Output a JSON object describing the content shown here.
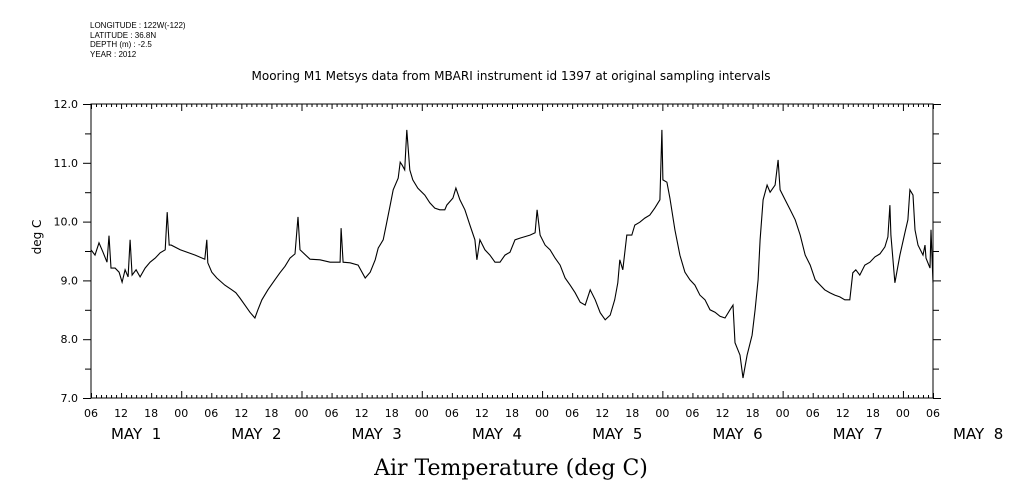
{
  "header": {
    "longitude": "LONGITUDE : 122W(-122)",
    "latitude": "LATITUDE : 36.8N",
    "depth": "DEPTH (m) : -2.5",
    "year": "YEAR : 2012"
  },
  "chart_data": {
    "type": "line",
    "title": "Mooring M1 Metsys data from MBARI instrument id 1397 at original sampling intervals",
    "xlabel": "Air Temperature (deg C)",
    "ylabel": "deg C",
    "ylim": [
      7.0,
      12.0
    ],
    "yticks": [
      "7.0",
      "8.0",
      "9.0",
      "10.0",
      "11.0",
      "12.0"
    ],
    "xlim": [
      0,
      168
    ],
    "xtick_labels": [
      "06",
      "12",
      "18",
      "00",
      "06",
      "12",
      "18",
      "00",
      "06",
      "12",
      "18",
      "00",
      "06",
      "12",
      "18",
      "00",
      "06",
      "12",
      "18",
      "00",
      "06",
      "12",
      "18",
      "00",
      "06",
      "12",
      "18",
      "00",
      "06"
    ],
    "day_labels": [
      "MAY  1",
      "MAY  2",
      "MAY  3",
      "MAY  4",
      "MAY  5",
      "MAY  6",
      "MAY  7",
      "MAY  8"
    ],
    "grid": false,
    "line_color": "#000000",
    "series": [
      {
        "name": "Air Temperature",
        "points": [
          [
            0,
            9.52
          ],
          [
            0.8,
            9.43
          ],
          [
            1.6,
            9.64
          ],
          [
            2.4,
            9.48
          ],
          [
            3.2,
            9.31
          ],
          [
            3.6,
            9.76
          ],
          [
            4.0,
            9.21
          ],
          [
            4.8,
            9.21
          ],
          [
            5.6,
            9.14
          ],
          [
            6.2,
            8.97
          ],
          [
            6.8,
            9.18
          ],
          [
            7.4,
            9.06
          ],
          [
            7.8,
            9.69
          ],
          [
            8.2,
            9.09
          ],
          [
            9.0,
            9.18
          ],
          [
            9.8,
            9.06
          ],
          [
            10.8,
            9.21
          ],
          [
            11.8,
            9.31
          ],
          [
            12.8,
            9.38
          ],
          [
            13.8,
            9.47
          ],
          [
            14.8,
            9.52
          ],
          [
            15.2,
            10.16
          ],
          [
            15.6,
            9.6
          ],
          [
            16.0,
            9.6
          ],
          [
            17.8,
            9.52
          ],
          [
            20.8,
            9.43
          ],
          [
            22.7,
            9.36
          ],
          [
            23.1,
            9.69
          ],
          [
            23.3,
            9.3
          ],
          [
            24.1,
            9.14
          ],
          [
            25.1,
            9.04
          ],
          [
            26.7,
            8.92
          ],
          [
            28.1,
            8.84
          ],
          [
            28.9,
            8.79
          ],
          [
            29.7,
            8.7
          ],
          [
            30.7,
            8.58
          ],
          [
            31.7,
            8.46
          ],
          [
            32.7,
            8.36
          ],
          [
            33.3,
            8.5
          ],
          [
            34.1,
            8.67
          ],
          [
            35.3,
            8.84
          ],
          [
            36.7,
            9.01
          ],
          [
            37.7,
            9.13
          ],
          [
            38.7,
            9.24
          ],
          [
            39.7,
            9.38
          ],
          [
            40.7,
            9.45
          ],
          [
            41.3,
            10.08
          ],
          [
            41.7,
            9.52
          ],
          [
            43.7,
            9.36
          ],
          [
            45.7,
            9.35
          ],
          [
            47.7,
            9.31
          ],
          [
            49.7,
            9.31
          ],
          [
            49.9,
            9.89
          ],
          [
            50.3,
            9.31
          ],
          [
            51.7,
            9.3
          ],
          [
            53.3,
            9.26
          ],
          [
            54.7,
            9.04
          ],
          [
            55.7,
            9.14
          ],
          [
            56.7,
            9.35
          ],
          [
            57.3,
            9.55
          ],
          [
            58.3,
            9.69
          ],
          [
            58.9,
            9.94
          ],
          [
            59.7,
            10.28
          ],
          [
            60.3,
            10.54
          ],
          [
            61.3,
            10.74
          ],
          [
            61.7,
            11.01
          ],
          [
            62.1,
            10.96
          ],
          [
            62.6,
            10.88
          ],
          [
            63.0,
            11.56
          ],
          [
            63.6,
            10.88
          ],
          [
            64.2,
            10.71
          ],
          [
            65.2,
            10.57
          ],
          [
            66.6,
            10.45
          ],
          [
            67.6,
            10.32
          ],
          [
            68.6,
            10.23
          ],
          [
            69.6,
            10.2
          ],
          [
            70.6,
            10.2
          ],
          [
            71.0,
            10.28
          ],
          [
            72.2,
            10.4
          ],
          [
            72.8,
            10.57
          ],
          [
            73.6,
            10.37
          ],
          [
            74.6,
            10.2
          ],
          [
            75.6,
            9.94
          ],
          [
            76.6,
            9.69
          ],
          [
            77.0,
            9.35
          ],
          [
            77.6,
            9.69
          ],
          [
            78.6,
            9.52
          ],
          [
            79.6,
            9.43
          ],
          [
            80.6,
            9.31
          ],
          [
            81.6,
            9.31
          ],
          [
            82.6,
            9.43
          ],
          [
            83.6,
            9.48
          ],
          [
            84.6,
            9.69
          ],
          [
            85.6,
            9.72
          ],
          [
            87.6,
            9.77
          ],
          [
            88.6,
            9.81
          ],
          [
            89.0,
            10.2
          ],
          [
            89.6,
            9.77
          ],
          [
            90.6,
            9.6
          ],
          [
            91.6,
            9.52
          ],
          [
            92.6,
            9.38
          ],
          [
            93.6,
            9.26
          ],
          [
            94.6,
            9.04
          ],
          [
            95.6,
            8.92
          ],
          [
            96.6,
            8.79
          ],
          [
            97.6,
            8.63
          ],
          [
            98.6,
            8.58
          ],
          [
            99.6,
            8.84
          ],
          [
            100.6,
            8.67
          ],
          [
            101.6,
            8.45
          ],
          [
            102.6,
            8.33
          ],
          [
            103.6,
            8.41
          ],
          [
            104.5,
            8.67
          ],
          [
            105.1,
            8.96
          ],
          [
            105.5,
            9.35
          ],
          [
            106.1,
            9.18
          ],
          [
            106.9,
            9.77
          ],
          [
            107.9,
            9.77
          ],
          [
            108.5,
            9.94
          ],
          [
            109.5,
            9.99
          ],
          [
            110.5,
            10.06
          ],
          [
            111.5,
            10.11
          ],
          [
            112.5,
            10.23
          ],
          [
            113.5,
            10.37
          ],
          [
            113.9,
            11.56
          ],
          [
            114.1,
            10.71
          ],
          [
            114.9,
            10.67
          ],
          [
            115.5,
            10.4
          ],
          [
            116.5,
            9.86
          ],
          [
            117.5,
            9.43
          ],
          [
            118.5,
            9.14
          ],
          [
            119.5,
            9.01
          ],
          [
            120.5,
            8.92
          ],
          [
            121.5,
            8.75
          ],
          [
            122.5,
            8.67
          ],
          [
            123.5,
            8.5
          ],
          [
            124.5,
            8.46
          ],
          [
            125.5,
            8.39
          ],
          [
            126.5,
            8.36
          ],
          [
            127.5,
            8.5
          ],
          [
            128.1,
            8.58
          ],
          [
            128.5,
            7.94
          ],
          [
            129.5,
            7.73
          ],
          [
            130.1,
            7.34
          ],
          [
            130.9,
            7.73
          ],
          [
            131.9,
            8.07
          ],
          [
            132.5,
            8.5
          ],
          [
            133.1,
            9.01
          ],
          [
            133.5,
            9.69
          ],
          [
            134.1,
            10.37
          ],
          [
            134.9,
            10.62
          ],
          [
            135.5,
            10.5
          ],
          [
            136.5,
            10.62
          ],
          [
            137.1,
            11.05
          ],
          [
            137.5,
            10.54
          ],
          [
            138.5,
            10.37
          ],
          [
            139.5,
            10.2
          ],
          [
            140.5,
            10.03
          ],
          [
            141.5,
            9.77
          ],
          [
            142.5,
            9.43
          ],
          [
            143.5,
            9.26
          ],
          [
            144.5,
            9.01
          ],
          [
            145.5,
            8.92
          ],
          [
            146.4,
            8.84
          ],
          [
            147.4,
            8.79
          ],
          [
            148.4,
            8.75
          ],
          [
            149.4,
            8.72
          ],
          [
            150.4,
            8.67
          ],
          [
            151.4,
            8.67
          ],
          [
            152.0,
            9.13
          ],
          [
            152.6,
            9.18
          ],
          [
            153.4,
            9.09
          ],
          [
            154.4,
            9.26
          ],
          [
            155.4,
            9.31
          ],
          [
            156.4,
            9.4
          ],
          [
            157.4,
            9.45
          ],
          [
            158.4,
            9.57
          ],
          [
            159.0,
            9.74
          ],
          [
            159.4,
            10.28
          ],
          [
            159.6,
            9.77
          ],
          [
            160.4,
            8.96
          ],
          [
            161.4,
            9.43
          ],
          [
            162.4,
            9.81
          ],
          [
            163.0,
            10.03
          ],
          [
            163.4,
            10.54
          ],
          [
            164.0,
            10.45
          ],
          [
            164.4,
            9.86
          ],
          [
            165.0,
            9.6
          ],
          [
            166.0,
            9.43
          ],
          [
            166.4,
            9.6
          ],
          [
            166.6,
            9.38
          ],
          [
            167.4,
            9.21
          ],
          [
            167.6,
            9.86
          ],
          [
            168.0,
            8.96
          ]
        ]
      }
    ]
  }
}
